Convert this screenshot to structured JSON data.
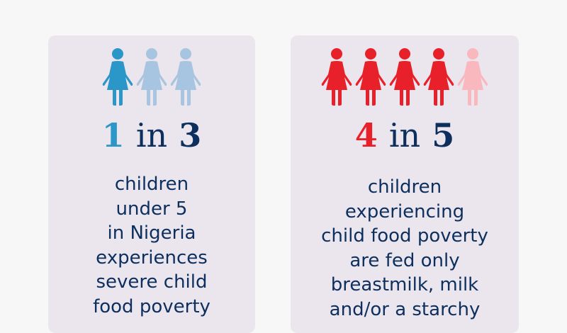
{
  "colors": {
    "blue": "#2b97c9",
    "light_blue": "#a7c4e0",
    "red": "#e8202a",
    "pink": "#f9b8bd",
    "navy": "#0d2f5e"
  },
  "left": {
    "icon": "woman-icon",
    "total": 3,
    "highlighted": 1,
    "stat_num": "1",
    "stat_in": "in",
    "stat_den": "3",
    "lines": [
      "children",
      "under 5",
      "in Nigeria",
      "experiences",
      "severe child",
      "food poverty"
    ]
  },
  "right": {
    "icon": "woman-icon",
    "total": 5,
    "highlighted": 4,
    "stat_num": "4",
    "stat_in": "in",
    "stat_den": "5",
    "lines": [
      "children",
      "experiencing",
      "child food poverty",
      "are fed only",
      "breastmilk, milk",
      "and/or a starchy"
    ]
  }
}
